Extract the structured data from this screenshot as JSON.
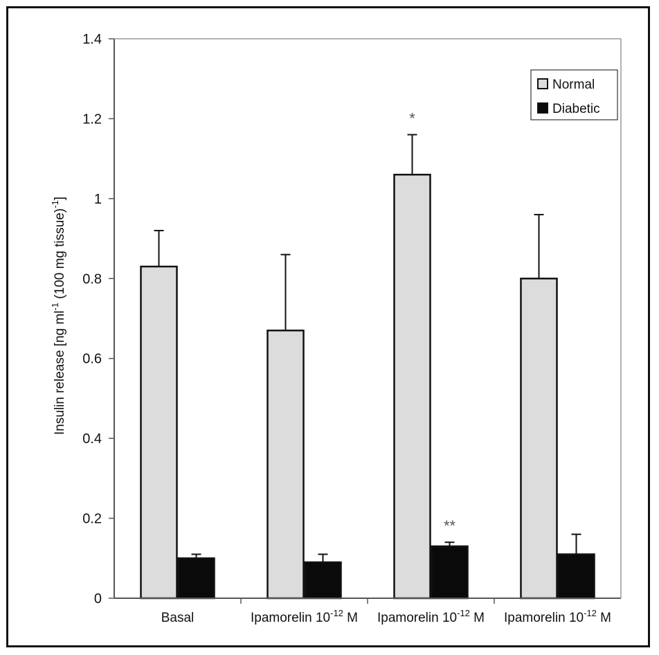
{
  "chart_data": {
    "type": "bar",
    "title": "",
    "xlabel": "",
    "ylabel": "Insulin release [ng ml-1 (100 mg tissue)-1]",
    "ylabel_parts": {
      "a": "Insulin release [ng ml",
      "b": "-1",
      "c": " (100 mg tissue)",
      "d": "-1",
      "e": "]"
    },
    "ylim": [
      0,
      1.4
    ],
    "yticks": [
      "0",
      "0.2",
      "0.4",
      "0.6",
      "0.8",
      "1",
      "1.2",
      "1.4"
    ],
    "categories": [
      {
        "main": "Basal",
        "sup": "",
        "tail": ""
      },
      {
        "main": "Ipamorelin 10",
        "sup": "-12",
        "tail": " M"
      },
      {
        "main": "Ipamorelin 10",
        "sup": "-12",
        "tail": " M"
      },
      {
        "main": "Ipamorelin 10",
        "sup": "-12",
        "tail": " M"
      }
    ],
    "series": [
      {
        "name": "Normal",
        "color": "#dcdcdc",
        "values": [
          0.83,
          0.67,
          1.06,
          0.8
        ],
        "errors": [
          0.09,
          0.19,
          0.1,
          0.16
        ]
      },
      {
        "name": "Diabetic",
        "color": "#0a0a0a",
        "values": [
          0.1,
          0.09,
          0.13,
          0.11
        ],
        "errors": [
          0.01,
          0.02,
          0.01,
          0.05
        ]
      }
    ],
    "annotations": [
      {
        "text": "*",
        "series": 0,
        "category": 2
      },
      {
        "text": "**",
        "series": 1,
        "category": 2
      }
    ],
    "legend": {
      "position": "top-right",
      "items": [
        "Normal",
        "Diabetic"
      ]
    }
  }
}
